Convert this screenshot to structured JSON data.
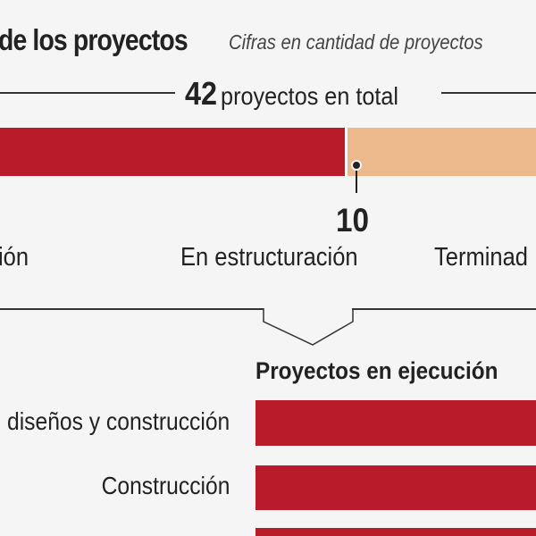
{
  "header": {
    "title": "de los proyectos",
    "subtitle": "Cifras en cantidad de proyectos"
  },
  "total": {
    "number": "42",
    "label": "proyectos en total"
  },
  "colors": {
    "red": "#b81b2a",
    "peach": "#ebb98c",
    "background": "#f5f5f5",
    "text": "#222222"
  },
  "chart_data": [
    {
      "type": "bar",
      "orientation": "horizontal-stacked",
      "total": 42,
      "categories": [
        "ión",
        "En estructuración",
        "Terminad"
      ],
      "segments": [
        {
          "name": "ión",
          "color": "#b81b2a",
          "visible_value": null
        },
        {
          "name": "En estructuración",
          "color": "#ebb98c",
          "value_label": "10"
        }
      ],
      "marker_value": "10"
    },
    {
      "type": "bar",
      "orientation": "horizontal",
      "title": "Proyectos en ejecución",
      "categories": [
        "diseños y construcción",
        "Construcción"
      ],
      "series": [
        {
          "color": "#b81b2a"
        }
      ]
    }
  ]
}
